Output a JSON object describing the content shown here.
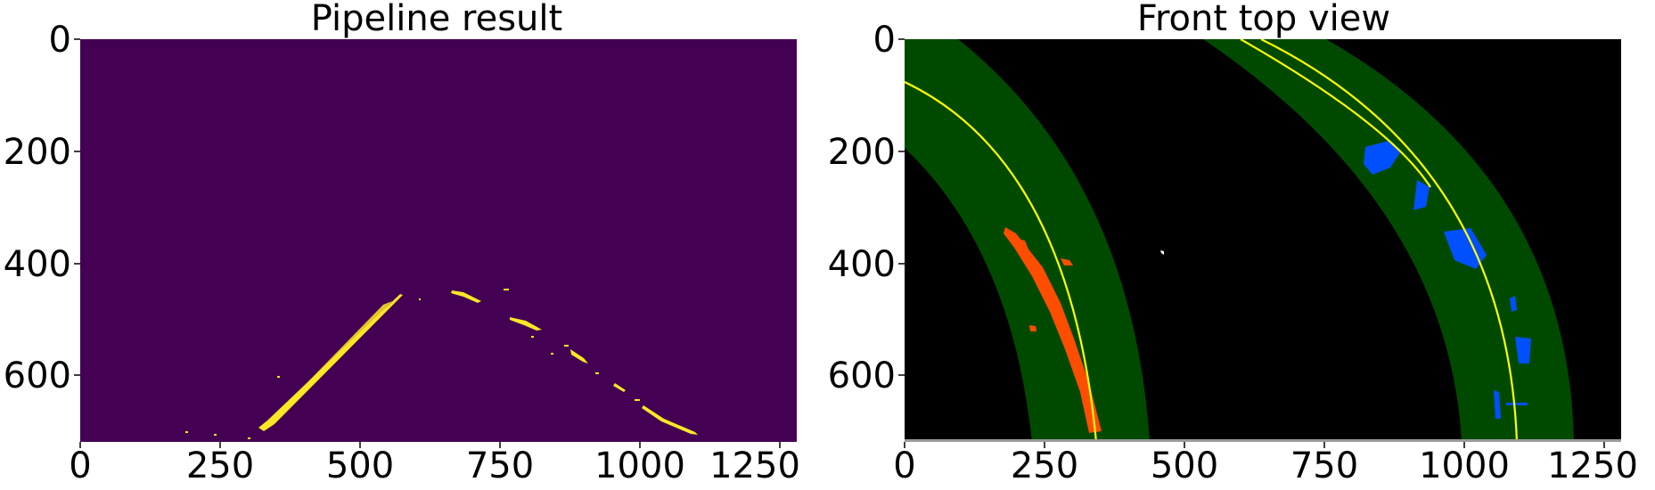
{
  "panels": [
    {
      "title": "Pipeline result",
      "image": {
        "description_colors": {
          "background": "#440154",
          "lane_pixels": "#fde725"
        },
        "width_units": 1280,
        "height_units": 720
      },
      "x_ticks": [
        "0",
        "250",
        "500",
        "750",
        "1000",
        "1250"
      ],
      "y_ticks": [
        "0",
        "200",
        "400",
        "600"
      ]
    },
    {
      "title": "Front top view",
      "image": {
        "description_colors": {
          "background": "#000000",
          "search_window": "#004a00",
          "left_lane_pixels": "#ff4d00",
          "right_lane_pixels": "#0050ff",
          "fit_line": "#ffff00"
        },
        "width_units": 1280,
        "height_units": 720
      },
      "x_ticks": [
        "0",
        "250",
        "500",
        "750",
        "1000",
        "1250"
      ],
      "y_ticks": [
        "0",
        "200",
        "400",
        "600"
      ]
    }
  ]
}
